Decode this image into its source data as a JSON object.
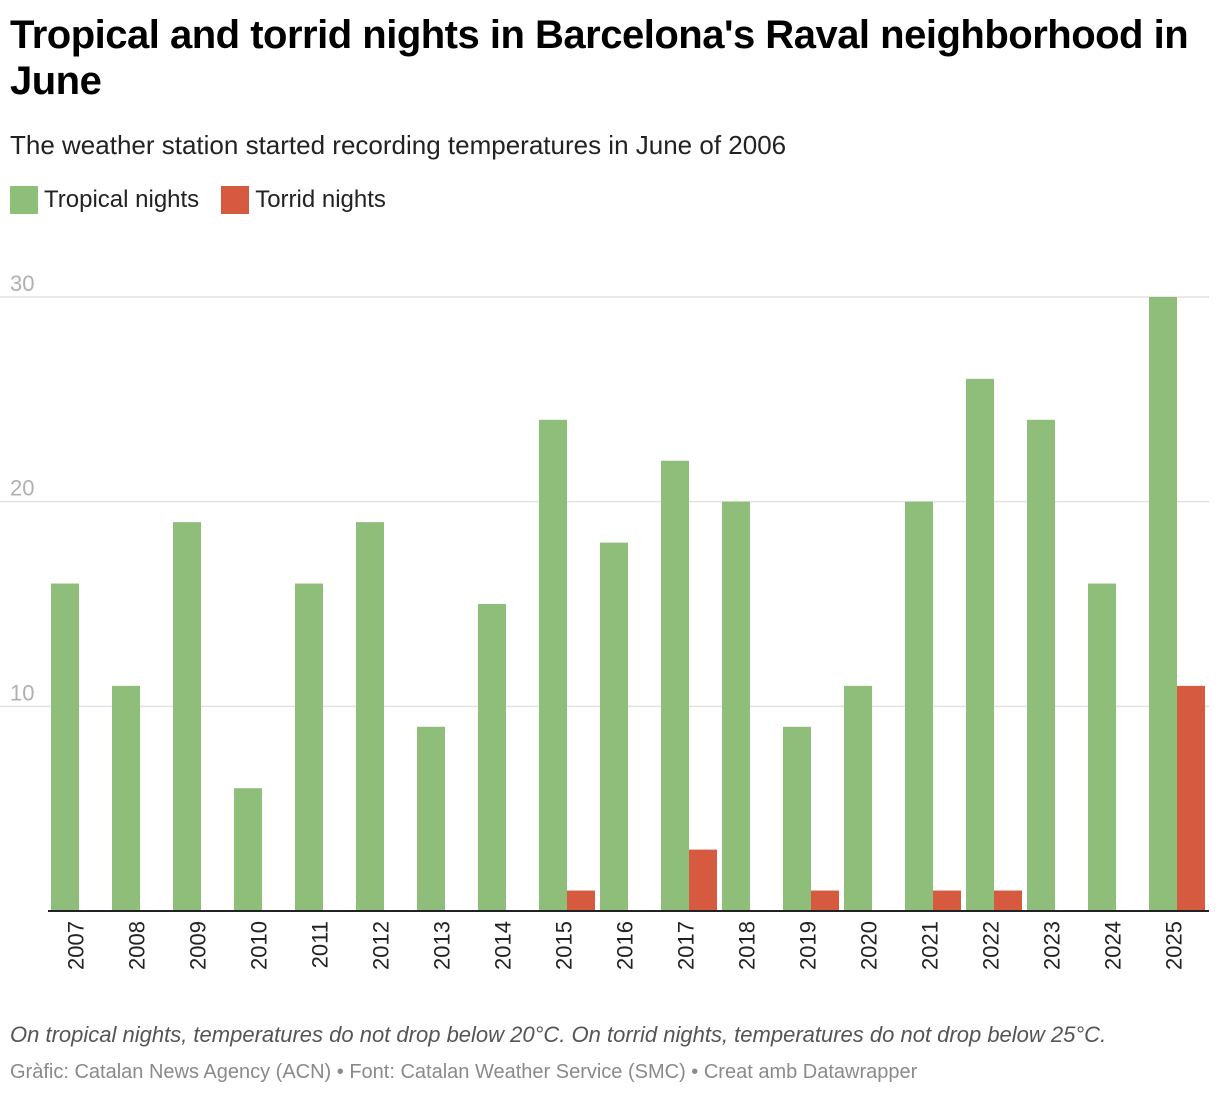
{
  "header": {
    "title": "Tropical and torrid nights in Barcelona's Raval neighborhood in June",
    "subtitle": "The weather station started recording temperatures in June of 2006"
  },
  "legend": {
    "tropical_label": "Tropical nights",
    "torrid_label": "Torrid nights"
  },
  "colors": {
    "tropical": "#8fbd7a",
    "torrid": "#d65a3f",
    "grid": "#e2e2e2",
    "axis": "#222222",
    "tick_label": "#b0b0b0"
  },
  "chart_data": {
    "type": "bar",
    "categories": [
      "2007",
      "2008",
      "2009",
      "2010",
      "2011",
      "2012",
      "2013",
      "2014",
      "2015",
      "2016",
      "2017",
      "2018",
      "2019",
      "2020",
      "2021",
      "2022",
      "2023",
      "2024",
      "2025"
    ],
    "series": [
      {
        "name": "Tropical nights",
        "values": [
          16,
          11,
          19,
          6,
          16,
          19,
          9,
          15,
          24,
          18,
          22,
          20,
          9,
          11,
          20,
          26,
          24,
          16,
          30
        ]
      },
      {
        "name": "Torrid nights",
        "values": [
          0,
          0,
          0,
          0,
          0,
          0,
          0,
          0,
          1,
          0,
          3,
          0,
          1,
          0,
          1,
          1,
          0,
          0,
          11
        ]
      }
    ],
    "title": "Tropical and torrid nights in Barcelona's Raval neighborhood in June",
    "xlabel": "",
    "ylabel": "",
    "ylim": [
      0,
      30
    ],
    "yticks": [
      "10",
      "20",
      "30"
    ],
    "grid": true,
    "legend_position": "top-left"
  },
  "footer": {
    "note": "On tropical nights, temperatures do not drop below 20°C. On torrid nights, temperatures do not drop below 25°C.",
    "credits": "Gràfic: Catalan News Agency (ACN) • Font: Catalan Weather Service (SMC) • Creat amb Datawrapper"
  }
}
